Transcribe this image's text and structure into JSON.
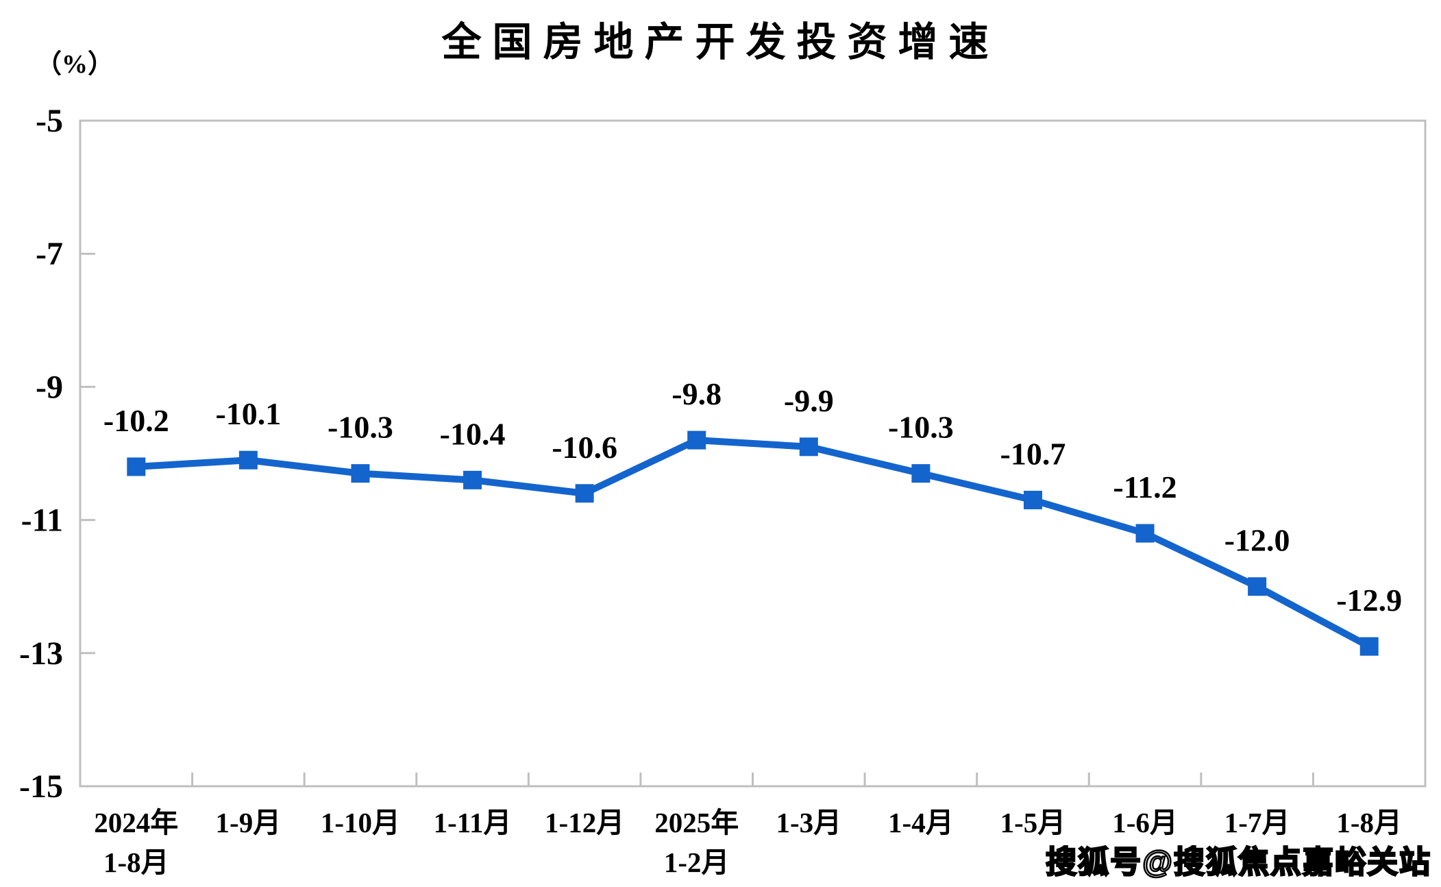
{
  "page": {
    "background": "#ffffff"
  },
  "chart_data": {
    "type": "line",
    "title": "全国房地产开发投资增速",
    "unit_label": "（%）",
    "categories": [
      [
        "2024年",
        "1-8月"
      ],
      [
        "1-9月"
      ],
      [
        "1-10月"
      ],
      [
        "1-11月"
      ],
      [
        "1-12月"
      ],
      [
        "2025年",
        "1-2月"
      ],
      [
        "1-3月"
      ],
      [
        "1-4月"
      ],
      [
        "1-5月"
      ],
      [
        "1-6月"
      ],
      [
        "1-7月"
      ],
      [
        "1-8月"
      ]
    ],
    "series": [
      {
        "name": "全国房地产开发投资增速",
        "values": [
          -10.2,
          -10.1,
          -10.3,
          -10.4,
          -10.6,
          -9.8,
          -9.9,
          -10.3,
          -10.7,
          -11.2,
          -12.0,
          -12.9
        ],
        "data_labels": [
          "-10.2",
          "-10.1",
          "-10.3",
          "-10.4",
          "-10.6",
          "-9.8",
          "-9.9",
          "-10.3",
          "-10.7",
          "-11.2",
          "-12.0",
          "-12.9"
        ]
      }
    ],
    "y_ticks": [
      "-5",
      "-7",
      "-9",
      "-11",
      "-13",
      "-15"
    ],
    "y_tick_values": [
      -5,
      -7,
      -9,
      -11,
      -13,
      -15
    ],
    "ylim": [
      -15,
      -5
    ],
    "grid": false,
    "legend_position": "none",
    "colors": {
      "series": "#1464CD",
      "axis": "#bfbfbf",
      "text": "#000000"
    }
  },
  "watermark": {
    "text": "搜狐号@搜狐焦点嘉峪关站"
  }
}
